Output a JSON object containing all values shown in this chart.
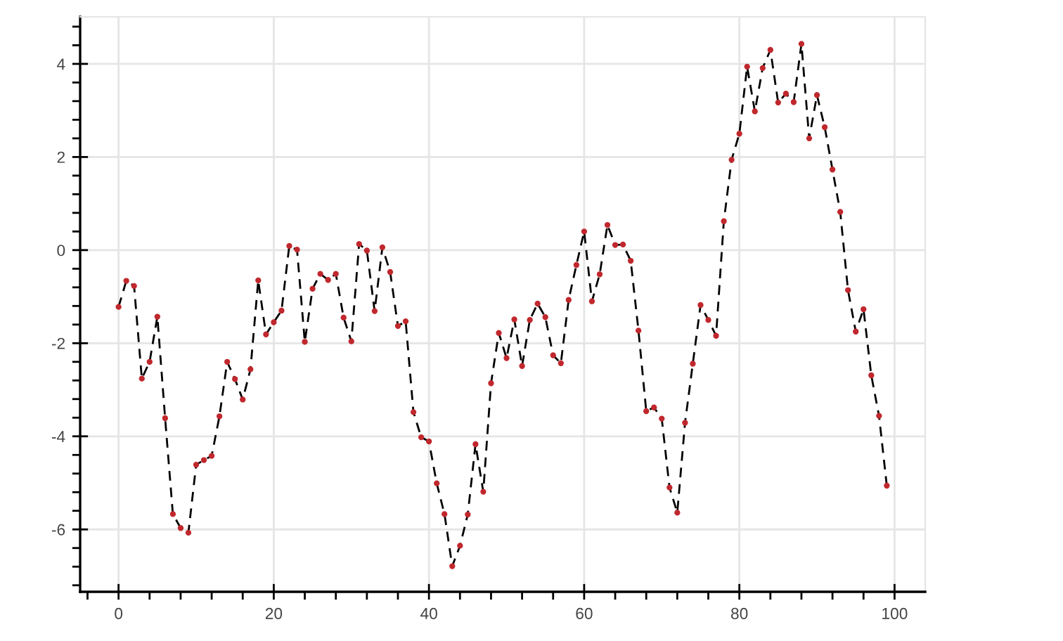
{
  "chart_data": {
    "type": "line",
    "x": [
      0,
      1,
      2,
      3,
      4,
      5,
      6,
      7,
      8,
      9,
      10,
      11,
      12,
      13,
      14,
      15,
      16,
      17,
      18,
      19,
      20,
      21,
      22,
      23,
      24,
      25,
      26,
      27,
      28,
      29,
      30,
      31,
      32,
      33,
      34,
      35,
      36,
      37,
      38,
      39,
      40,
      41,
      42,
      43,
      44,
      45,
      46,
      47,
      48,
      49,
      50,
      51,
      52,
      53,
      54,
      55,
      56,
      57,
      58,
      59,
      60,
      61,
      62,
      63,
      64,
      65,
      66,
      67,
      68,
      69,
      70,
      71,
      72,
      73,
      74,
      75,
      76,
      77,
      78,
      79,
      80,
      81,
      82,
      83,
      84,
      85,
      86,
      87,
      88,
      89,
      90,
      91,
      92,
      93,
      94,
      95,
      96,
      97,
      98,
      99
    ],
    "series": [
      {
        "color": "#000000",
        "line_style": "dashed",
        "marker": "none",
        "values": [
          -1.22,
          -0.66,
          -0.77,
          -2.76,
          -2.4,
          -1.43,
          -3.61,
          -5.67,
          -5.97,
          -6.07,
          -4.61,
          -4.51,
          -4.42,
          -3.57,
          -2.4,
          -2.77,
          -3.21,
          -2.56,
          -0.65,
          -1.81,
          -1.55,
          -1.3,
          0.09,
          0.01,
          -1.97,
          -0.83,
          -0.51,
          -0.64,
          -0.51,
          -1.45,
          -1.96,
          0.13,
          -0.01,
          -1.31,
          0.06,
          -0.47,
          -1.63,
          -1.53,
          -3.48,
          -4.02,
          -4.11,
          -5.01,
          -5.67,
          -6.79,
          -6.35,
          -5.68,
          -4.17,
          -5.19,
          -2.86,
          -1.78,
          -2.32,
          -1.49,
          -2.49,
          -1.5,
          -1.15,
          -1.44,
          -2.26,
          -2.43,
          -1.07,
          -0.32,
          0.4,
          -1.1,
          -0.52,
          0.54,
          0.11,
          0.12,
          -0.23,
          -1.73,
          -3.46,
          -3.38,
          -3.62,
          -5.1,
          -5.64,
          -3.71,
          -2.44,
          -1.18,
          -1.5,
          -1.84,
          0.62,
          1.94,
          2.5,
          3.94,
          2.98,
          3.91,
          4.3,
          3.17,
          3.36,
          3.18,
          4.43,
          2.4,
          3.33,
          2.64,
          1.73,
          0.82,
          -0.86,
          -1.75,
          -1.27,
          -2.69,
          -3.56,
          -5.06
        ]
      },
      {
        "type": "scatter",
        "color": "#c0282d",
        "marker": "circle",
        "values": [
          -1.22,
          -0.66,
          -0.77,
          -2.76,
          -2.4,
          -1.43,
          -3.61,
          -5.67,
          -5.97,
          -6.07,
          -4.61,
          -4.51,
          -4.42,
          -3.57,
          -2.4,
          -2.77,
          -3.21,
          -2.56,
          -0.65,
          -1.81,
          -1.55,
          -1.3,
          0.09,
          0.01,
          -1.97,
          -0.83,
          -0.51,
          -0.64,
          -0.51,
          -1.45,
          -1.96,
          0.13,
          -0.01,
          -1.31,
          0.06,
          -0.47,
          -1.63,
          -1.53,
          -3.48,
          -4.02,
          -4.11,
          -5.01,
          -5.67,
          -6.79,
          -6.35,
          -5.68,
          -4.17,
          -5.19,
          -2.86,
          -1.78,
          -2.32,
          -1.49,
          -2.49,
          -1.5,
          -1.15,
          -1.44,
          -2.26,
          -2.43,
          -1.07,
          -0.32,
          0.4,
          -1.1,
          -0.52,
          0.54,
          0.11,
          0.12,
          -0.23,
          -1.73,
          -3.46,
          -3.38,
          -3.62,
          -5.1,
          -5.64,
          -3.71,
          -2.44,
          -1.18,
          -1.5,
          -1.84,
          0.62,
          1.94,
          2.5,
          3.94,
          2.98,
          3.91,
          4.3,
          3.17,
          3.36,
          3.18,
          4.43,
          2.4,
          3.33,
          2.64,
          1.73,
          0.82,
          -0.86,
          -1.75,
          -1.27,
          -2.69,
          -3.56,
          -5.06
        ]
      }
    ],
    "xlim": [
      -4.95,
      103.95
    ],
    "ylim": [
      -7.34,
      5.01
    ],
    "xticks": [
      0,
      20,
      40,
      60,
      80,
      100
    ],
    "yticks": [
      -6,
      -4,
      -2,
      0,
      2,
      4
    ],
    "grid": true
  }
}
